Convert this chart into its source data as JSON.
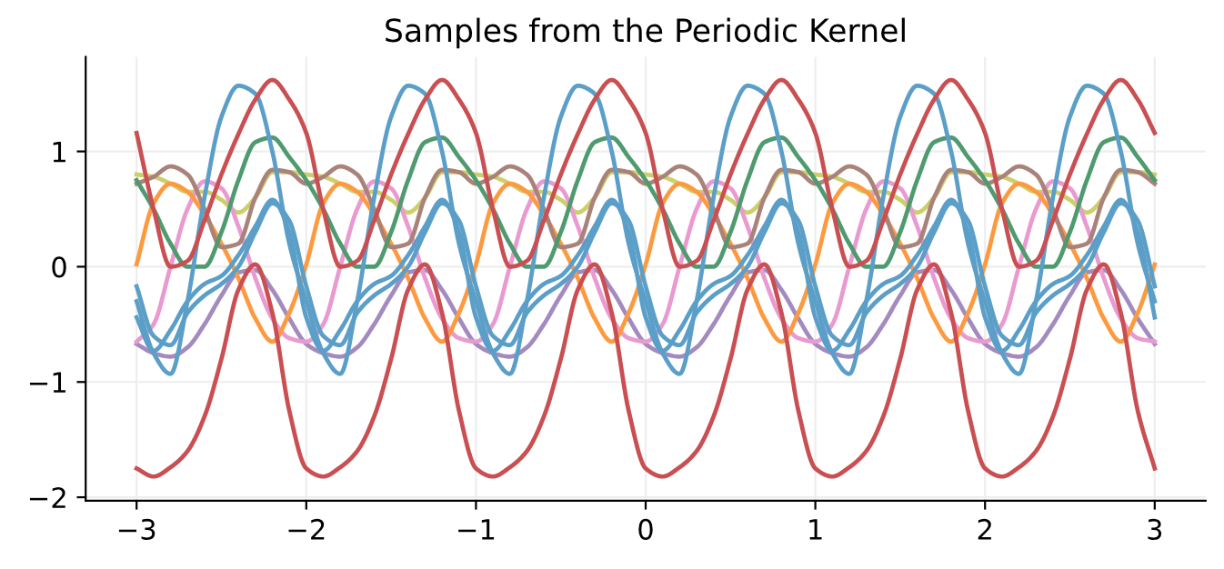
{
  "chart_data": {
    "type": "line",
    "title": "Samples from the Periodic Kernel",
    "x": [
      -3,
      -2.9,
      -2.8,
      -2.7,
      -2.6,
      -2.5,
      -2.4,
      -2.3,
      -2.2,
      -2.1,
      -2,
      -1.9,
      -1.8,
      -1.7,
      -1.6,
      -1.5,
      -1.4,
      -1.3,
      -1.2,
      -1.1,
      -1,
      -0.9,
      -0.8,
      -0.7,
      -0.6,
      -0.5,
      -0.4,
      -0.3,
      -0.2,
      -0.1,
      0,
      0.1,
      0.2,
      0.3,
      0.4,
      0.5,
      0.6,
      0.7,
      0.8,
      0.9,
      1,
      1.1,
      1.2,
      1.3,
      1.4,
      1.5,
      1.6,
      1.7,
      1.8,
      1.9,
      2,
      2.1,
      2.2,
      2.3,
      2.4,
      2.5,
      2.6,
      2.7,
      2.8,
      2.9,
      3
    ],
    "series": [
      {
        "color": "#cdcf6a",
        "values": [
          0.8,
          0.78,
          0.72,
          0.65,
          0.65,
          0.58,
          0.47,
          0.6,
          0.82,
          0.82,
          0.8,
          0.78,
          0.72,
          0.65,
          0.65,
          0.58,
          0.47,
          0.6,
          0.82,
          0.82,
          0.8,
          0.78,
          0.72,
          0.65,
          0.65,
          0.58,
          0.47,
          0.6,
          0.82,
          0.82,
          0.8,
          0.78,
          0.72,
          0.65,
          0.65,
          0.58,
          0.47,
          0.6,
          0.82,
          0.82,
          0.8,
          0.78,
          0.72,
          0.65,
          0.65,
          0.58,
          0.47,
          0.6,
          0.82,
          0.82,
          0.8,
          0.78,
          0.72,
          0.65,
          0.65,
          0.58,
          0.47,
          0.6,
          0.82,
          0.82,
          0.8
        ]
      },
      {
        "color": "#a48bbf",
        "values": [
          -0.67,
          -0.75,
          -0.78,
          -0.7,
          -0.5,
          -0.25,
          -0.05,
          -0.03,
          -0.2,
          -0.45,
          -0.67,
          -0.75,
          -0.78,
          -0.7,
          -0.5,
          -0.25,
          -0.05,
          -0.03,
          -0.2,
          -0.45,
          -0.67,
          -0.75,
          -0.78,
          -0.7,
          -0.5,
          -0.25,
          -0.05,
          -0.03,
          -0.2,
          -0.45,
          -0.67,
          -0.75,
          -0.78,
          -0.7,
          -0.5,
          -0.25,
          -0.05,
          -0.03,
          -0.2,
          -0.45,
          -0.67,
          -0.75,
          -0.78,
          -0.7,
          -0.5,
          -0.25,
          -0.05,
          -0.03,
          -0.2,
          -0.45,
          -0.67,
          -0.75,
          -0.78,
          -0.7,
          -0.5,
          -0.25,
          -0.05,
          -0.03,
          -0.2,
          -0.45,
          -0.67
        ]
      },
      {
        "color": "#e99ad0",
        "values": [
          -0.65,
          -0.5,
          0.0,
          0.5,
          0.74,
          0.68,
          0.35,
          -0.1,
          -0.45,
          -0.62,
          -0.65,
          -0.5,
          0.0,
          0.5,
          0.74,
          0.68,
          0.35,
          -0.1,
          -0.45,
          -0.62,
          -0.65,
          -0.5,
          0.0,
          0.5,
          0.74,
          0.68,
          0.35,
          -0.1,
          -0.45,
          -0.62,
          -0.65,
          -0.5,
          0.0,
          0.5,
          0.74,
          0.68,
          0.35,
          -0.1,
          -0.45,
          -0.62,
          -0.65,
          -0.5,
          0.0,
          0.5,
          0.74,
          0.68,
          0.35,
          -0.1,
          -0.45,
          -0.62,
          -0.65,
          -0.5,
          0.0,
          0.5,
          0.74,
          0.68,
          0.35,
          -0.1,
          -0.45,
          -0.62,
          -0.65
        ]
      },
      {
        "color": "#fd9a3f",
        "values": [
          0.02,
          0.55,
          0.72,
          0.65,
          0.45,
          0.2,
          -0.1,
          -0.45,
          -0.65,
          -0.4,
          0.02,
          0.55,
          0.72,
          0.65,
          0.45,
          0.2,
          -0.1,
          -0.45,
          -0.65,
          -0.4,
          0.02,
          0.55,
          0.72,
          0.65,
          0.45,
          0.2,
          -0.1,
          -0.45,
          -0.65,
          -0.4,
          0.02,
          0.55,
          0.72,
          0.65,
          0.45,
          0.2,
          -0.1,
          -0.45,
          -0.65,
          -0.4,
          0.02,
          0.55,
          0.72,
          0.65,
          0.45,
          0.2,
          -0.1,
          -0.45,
          -0.65,
          -0.4,
          0.02,
          0.55,
          0.72,
          0.65,
          0.45,
          0.2,
          -0.1,
          -0.45,
          -0.65,
          -0.4,
          0.02
        ]
      },
      {
        "color": "#a9837a",
        "values": [
          0.72,
          0.78,
          0.87,
          0.8,
          0.5,
          0.17,
          0.2,
          0.6,
          0.84,
          0.82,
          0.72,
          0.78,
          0.87,
          0.8,
          0.5,
          0.17,
          0.2,
          0.6,
          0.84,
          0.82,
          0.72,
          0.78,
          0.87,
          0.8,
          0.5,
          0.17,
          0.2,
          0.6,
          0.84,
          0.82,
          0.72,
          0.78,
          0.87,
          0.8,
          0.5,
          0.17,
          0.2,
          0.6,
          0.84,
          0.82,
          0.72,
          0.78,
          0.87,
          0.8,
          0.5,
          0.17,
          0.2,
          0.6,
          0.84,
          0.82,
          0.72,
          0.78,
          0.87,
          0.8,
          0.5,
          0.17,
          0.2,
          0.6,
          0.84,
          0.82,
          0.72
        ]
      },
      {
        "color": "#4f9a6f",
        "values": [
          0.75,
          0.5,
          0.2,
          0.0,
          0.0,
          0.3,
          0.75,
          1.08,
          1.12,
          0.95,
          0.75,
          0.5,
          0.2,
          0.0,
          0.0,
          0.3,
          0.75,
          1.08,
          1.12,
          0.95,
          0.75,
          0.5,
          0.2,
          0.0,
          0.0,
          0.3,
          0.75,
          1.08,
          1.12,
          0.95,
          0.75,
          0.5,
          0.2,
          0.0,
          0.0,
          0.3,
          0.75,
          1.08,
          1.12,
          0.95,
          0.75,
          0.5,
          0.2,
          0.0,
          0.0,
          0.3,
          0.75,
          1.08,
          1.12,
          0.95,
          0.75,
          0.5,
          0.2,
          0.0,
          0.0,
          0.3,
          0.75,
          1.08,
          1.12,
          0.95,
          0.75
        ]
      },
      {
        "color": "#5b9fc8",
        "values": [
          -0.44,
          -0.73,
          -0.55,
          -0.3,
          -0.15,
          -0.08,
          0.1,
          0.35,
          0.58,
          0.3,
          -0.44,
          -0.73,
          -0.55,
          -0.3,
          -0.15,
          -0.08,
          0.1,
          0.35,
          0.58,
          0.3,
          -0.44,
          -0.73,
          -0.55,
          -0.3,
          -0.15,
          -0.08,
          0.1,
          0.35,
          0.58,
          0.3,
          -0.44,
          -0.73,
          -0.55,
          -0.3,
          -0.15,
          -0.08,
          0.1,
          0.35,
          0.58,
          0.3,
          -0.44,
          -0.73,
          -0.55,
          -0.3,
          -0.15,
          -0.08,
          0.1,
          0.35,
          0.58,
          0.3,
          -0.44,
          -0.73,
          -0.55,
          -0.3,
          -0.15,
          -0.08,
          0.1,
          0.35,
          0.58,
          0.3,
          -0.44
        ]
      },
      {
        "color": "#5b9fc8",
        "values": [
          -0.17,
          -0.6,
          -0.68,
          -0.4,
          -0.25,
          -0.15,
          0.0,
          0.3,
          0.55,
          0.4,
          -0.17,
          -0.6,
          -0.68,
          -0.4,
          -0.25,
          -0.15,
          0.0,
          0.3,
          0.55,
          0.4,
          -0.17,
          -0.6,
          -0.68,
          -0.4,
          -0.25,
          -0.15,
          0.0,
          0.3,
          0.55,
          0.4,
          -0.17,
          -0.6,
          -0.68,
          -0.4,
          -0.25,
          -0.15,
          0.0,
          0.3,
          0.55,
          0.4,
          -0.17,
          -0.6,
          -0.68,
          -0.4,
          -0.25,
          -0.15,
          0.0,
          0.3,
          0.55,
          0.4,
          -0.17,
          -0.6,
          -0.68,
          -0.4,
          -0.25,
          -0.15,
          0.0,
          0.3,
          0.55,
          0.4,
          -0.17
        ]
      },
      {
        "color": "#5b9fc8",
        "values": [
          -0.3,
          -0.75,
          -0.93,
          -0.3,
          0.6,
          1.3,
          1.57,
          1.5,
          1.0,
          0.2,
          -0.3,
          -0.75,
          -0.93,
          -0.3,
          0.6,
          1.3,
          1.57,
          1.5,
          1.0,
          0.2,
          -0.3,
          -0.75,
          -0.93,
          -0.3,
          0.6,
          1.3,
          1.57,
          1.5,
          1.0,
          0.2,
          -0.3,
          -0.75,
          -0.93,
          -0.3,
          0.6,
          1.3,
          1.57,
          1.5,
          1.0,
          0.2,
          -0.3,
          -0.75,
          -0.93,
          -0.3,
          0.6,
          1.3,
          1.57,
          1.5,
          1.0,
          0.2,
          -0.3,
          -0.75,
          -0.93,
          -0.3,
          0.6,
          1.3,
          1.57,
          1.5,
          1.0,
          0.2,
          -0.3
        ]
      },
      {
        "color": "#c94f52",
        "values": [
          -1.75,
          -1.82,
          -1.74,
          -1.6,
          -1.3,
          -0.8,
          -0.2,
          0.02,
          -0.4,
          -1.25,
          -1.75,
          -1.82,
          -1.74,
          -1.6,
          -1.3,
          -0.8,
          -0.2,
          0.02,
          -0.4,
          -1.25,
          -1.75,
          -1.82,
          -1.74,
          -1.6,
          -1.3,
          -0.8,
          -0.2,
          0.02,
          -0.4,
          -1.25,
          -1.75,
          -1.82,
          -1.74,
          -1.6,
          -1.3,
          -0.8,
          -0.2,
          0.02,
          -0.4,
          -1.25,
          -1.75,
          -1.82,
          -1.74,
          -1.6,
          -1.3,
          -0.8,
          -0.2,
          0.02,
          -0.4,
          -1.25,
          -1.75,
          -1.82,
          -1.74,
          -1.6,
          -1.3,
          -0.8,
          -0.2,
          0.02,
          -0.4,
          -1.25,
          -1.75
        ]
      },
      {
        "color": "#c94f52",
        "values": [
          1.16,
          0.5,
          0.0,
          0.05,
          0.4,
          0.8,
          1.15,
          1.45,
          1.62,
          1.45,
          1.16,
          0.5,
          0.0,
          0.05,
          0.4,
          0.8,
          1.15,
          1.45,
          1.62,
          1.45,
          1.16,
          0.5,
          0.0,
          0.05,
          0.4,
          0.8,
          1.15,
          1.45,
          1.62,
          1.45,
          1.16,
          0.5,
          0.0,
          0.05,
          0.4,
          0.8,
          1.15,
          1.45,
          1.62,
          1.45,
          1.16,
          0.5,
          0.0,
          0.05,
          0.4,
          0.8,
          1.15,
          1.45,
          1.62,
          1.45,
          1.16,
          0.5,
          0.0,
          0.05,
          0.4,
          0.8,
          1.15,
          1.45,
          1.62,
          1.45,
          1.16
        ]
      }
    ],
    "xlim": [
      -3.3,
      3.3
    ],
    "ylim": [
      -2.03,
      1.82
    ],
    "xticks": [
      {
        "value": -3,
        "label": "−3"
      },
      {
        "value": -2,
        "label": "−2"
      },
      {
        "value": -1,
        "label": "−1"
      },
      0,
      1,
      2,
      3
    ],
    "yticks": [
      {
        "value": -2,
        "label": "−2"
      },
      {
        "value": -1,
        "label": "−1"
      },
      0,
      1
    ],
    "grid": true,
    "marker": "none",
    "line_style": "solid"
  }
}
